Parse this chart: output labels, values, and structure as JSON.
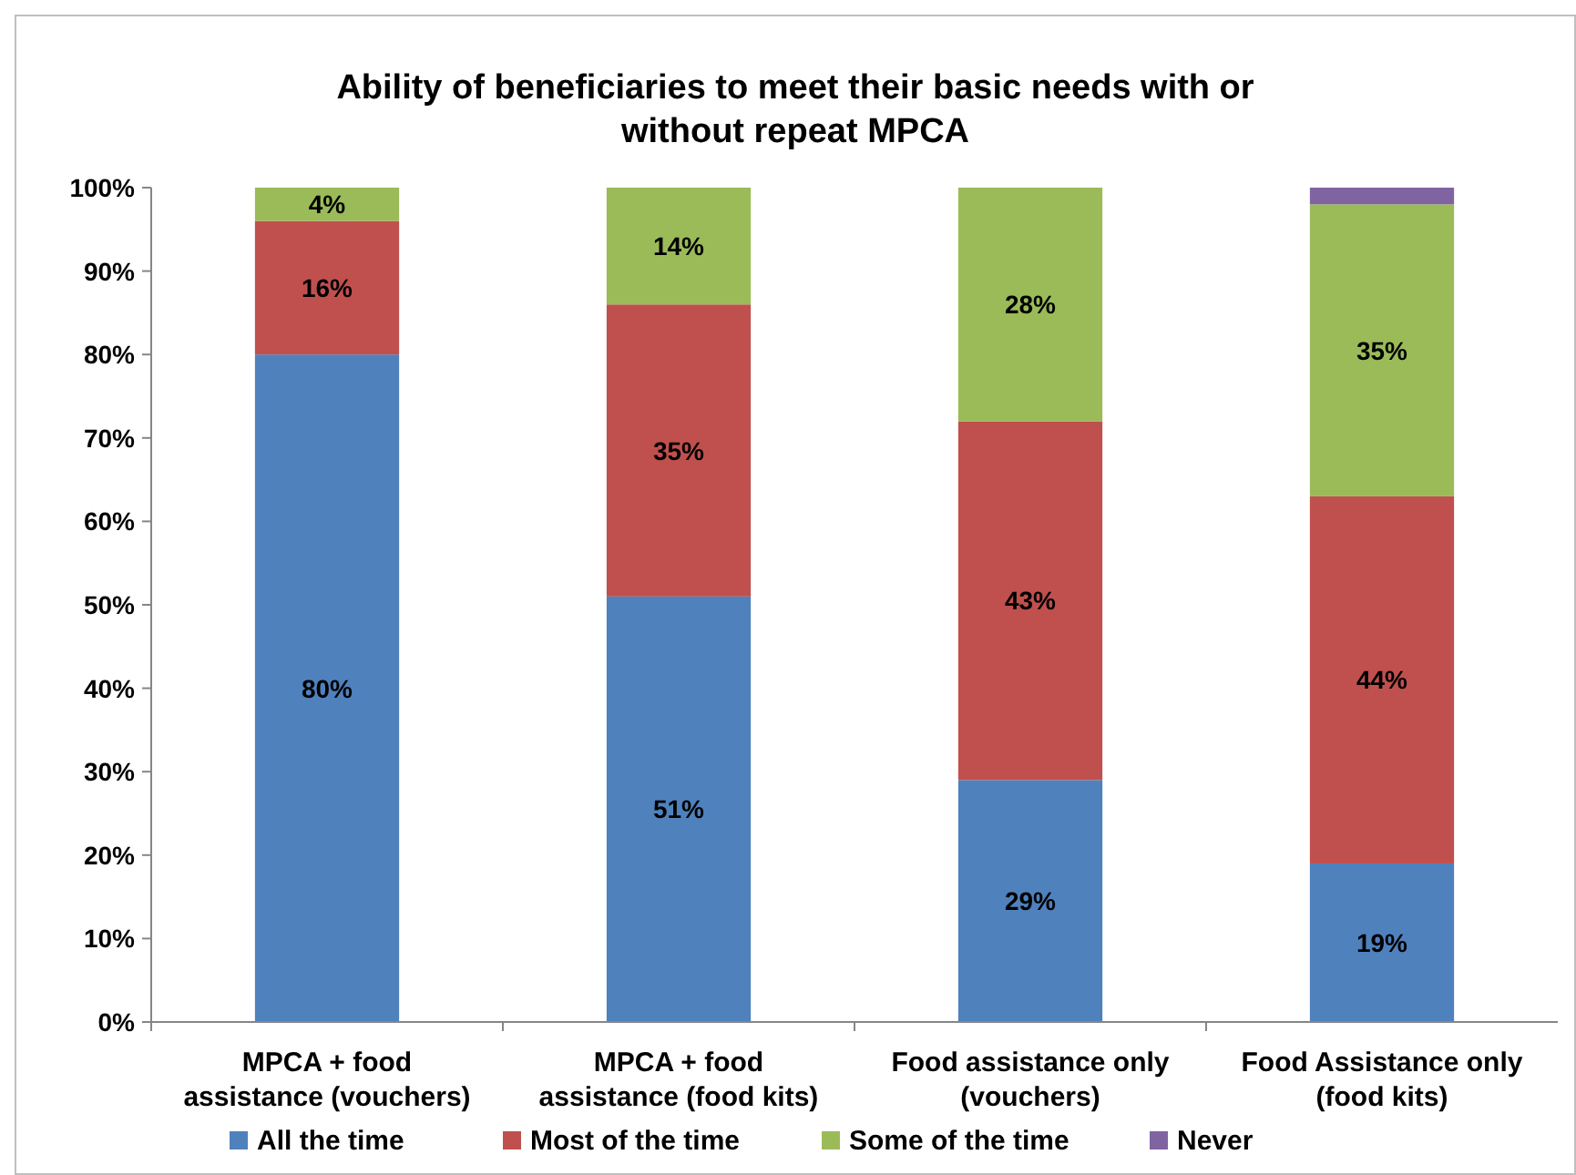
{
  "chart_data": {
    "type": "bar",
    "stacked": true,
    "title": "Ability of beneficiaries to meet their basic needs with or without repeat MPCA",
    "categories": [
      "MPCA + food assistance (vouchers)",
      "MPCA + food assistance (food kits)",
      "Food assistance only (vouchers)",
      "Food Assistance only (food kits)"
    ],
    "series": [
      {
        "name": "All the time",
        "color": "#4f81bd",
        "values": [
          80,
          51,
          29,
          19
        ],
        "value_labels": [
          "80%",
          "51%",
          "29%",
          "19%"
        ]
      },
      {
        "name": "Most of the time",
        "color": "#c0504d",
        "values": [
          16,
          35,
          43,
          44
        ],
        "value_labels": [
          "16%",
          "35%",
          "43%",
          "44%"
        ]
      },
      {
        "name": "Some of the time",
        "color": "#9bbb59",
        "values": [
          4,
          14,
          28,
          35
        ],
        "value_labels": [
          "4%",
          "14%",
          "28%",
          "35%"
        ]
      },
      {
        "name": "Never",
        "color": "#8064a2",
        "values": [
          0,
          0,
          0,
          2
        ]
      }
    ],
    "ylim": [
      0,
      100
    ],
    "yticks": [
      {
        "value": 0,
        "label": "0%"
      },
      {
        "value": 10,
        "label": "10%"
      },
      {
        "value": 20,
        "label": "20%"
      },
      {
        "value": 30,
        "label": "30%"
      },
      {
        "value": 40,
        "label": "40%"
      },
      {
        "value": 50,
        "label": "50%"
      },
      {
        "value": 60,
        "label": "60%"
      },
      {
        "value": 70,
        "label": "70%"
      },
      {
        "value": 80,
        "label": "80%"
      },
      {
        "value": 90,
        "label": "90%"
      },
      {
        "value": 100,
        "label": "100%"
      }
    ],
    "grid": false,
    "legend": "bottom"
  }
}
